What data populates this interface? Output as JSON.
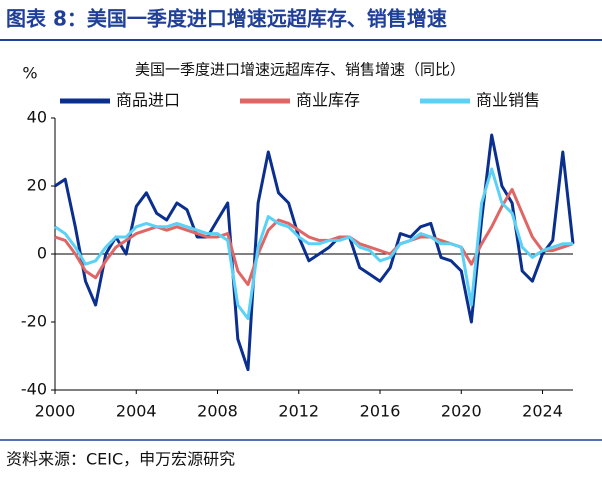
{
  "header": {
    "title": "图表 8：美国一季度进口增速远超库存、销售增速"
  },
  "chart_data": {
    "type": "line",
    "title": "美国一季度进口增速远超库存、销售增速（同比）",
    "y_label": "%",
    "x": [
      2000,
      2000.5,
      2001,
      2001.5,
      2002,
      2002.5,
      2003,
      2003.5,
      2004,
      2004.5,
      2005,
      2005.5,
      2006,
      2006.5,
      2007,
      2007.5,
      2008,
      2008.5,
      2009,
      2009.5,
      2010,
      2010.5,
      2011,
      2011.5,
      2012,
      2012.5,
      2013,
      2013.5,
      2014,
      2014.5,
      2015,
      2015.5,
      2016,
      2016.5,
      2017,
      2017.5,
      2018,
      2018.5,
      2019,
      2019.5,
      2020,
      2020.5,
      2021,
      2021.5,
      2022,
      2022.5,
      2023,
      2023.5,
      2024,
      2024.5,
      2025,
      2025.5
    ],
    "series": [
      {
        "name": "商品进口",
        "color": "#0b2f8f",
        "values": [
          20,
          22,
          8,
          -8,
          -15,
          0,
          5,
          0,
          14,
          18,
          12,
          10,
          15,
          13,
          5,
          5,
          10,
          15,
          -25,
          -34,
          15,
          30,
          18,
          15,
          5,
          -2,
          0,
          2,
          5,
          5,
          -4,
          -6,
          -8,
          -4,
          6,
          5,
          8,
          9,
          -1,
          -2,
          -5,
          -20,
          10,
          35,
          20,
          15,
          -5,
          -8,
          0,
          4,
          30,
          3
        ]
      },
      {
        "name": "商业库存",
        "color": "#e06666",
        "values": [
          5,
          4,
          0,
          -5,
          -7,
          -2,
          2,
          4,
          6,
          7,
          8,
          7,
          8,
          7,
          6,
          5,
          5,
          6,
          -5,
          -9,
          0,
          7,
          10,
          9,
          7,
          5,
          4,
          4,
          5,
          5,
          3,
          2,
          1,
          0,
          3,
          4,
          5,
          5,
          4,
          3,
          2,
          -3,
          3,
          8,
          14,
          19,
          12,
          5,
          1,
          1,
          2,
          3
        ]
      },
      {
        "name": "商业销售",
        "color": "#5ad1f5",
        "values": [
          8,
          6,
          2,
          -3,
          -2,
          2,
          5,
          5,
          8,
          9,
          8,
          8,
          9,
          8,
          7,
          6,
          6,
          4,
          -15,
          -19,
          2,
          11,
          9,
          8,
          5,
          3,
          3,
          4,
          4,
          5,
          2,
          1,
          -2,
          -1,
          3,
          4,
          6,
          5,
          3,
          3,
          2,
          -15,
          15,
          25,
          15,
          12,
          2,
          -1,
          1,
          2,
          3,
          3
        ]
      }
    ],
    "xlim": [
      2000,
      2025.5
    ],
    "xticks": [
      2000,
      2004,
      2008,
      2012,
      2016,
      2020,
      2024
    ],
    "ylim": [
      -40,
      40
    ],
    "yticks": [
      -40,
      -20,
      0,
      20,
      40
    ],
    "zero_line": true
  },
  "source": "资料来源：CEIC，申万宏源研究"
}
